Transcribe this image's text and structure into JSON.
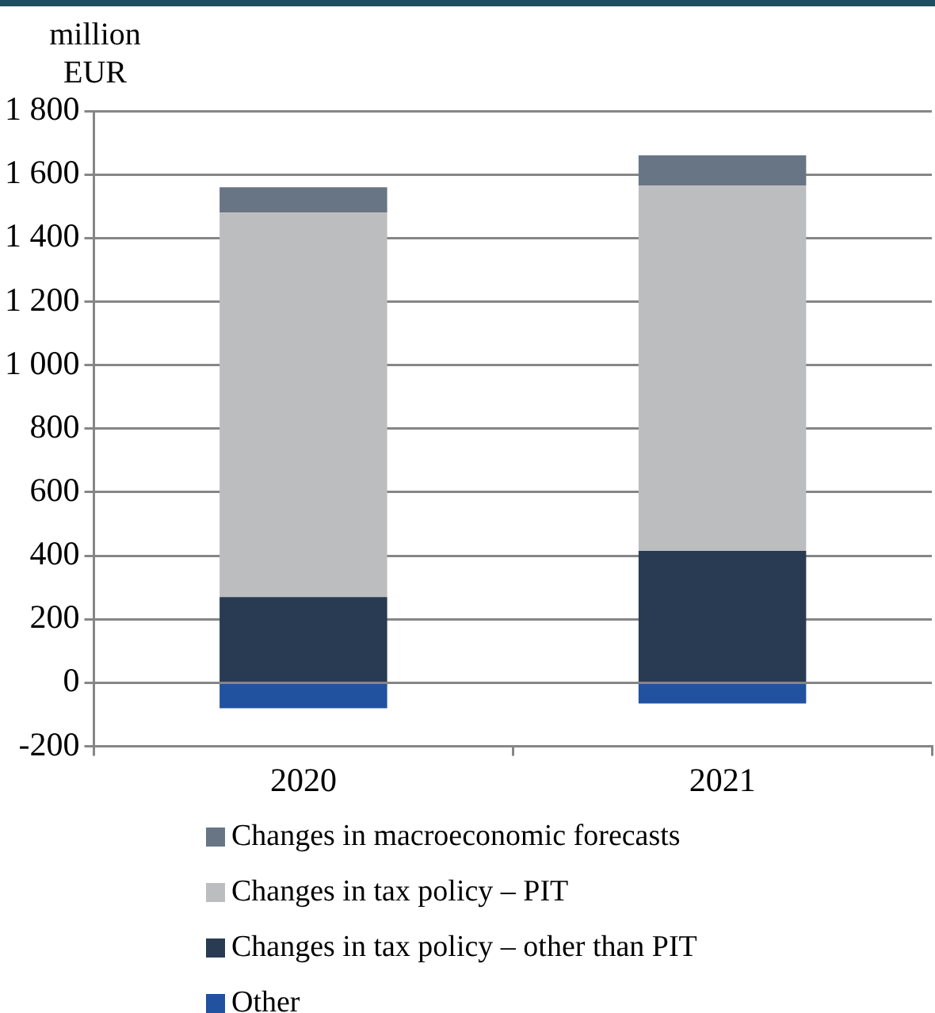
{
  "chart_data": {
    "type": "bar",
    "stacked": true,
    "ylabel": "million EUR",
    "categories": [
      "2020",
      "2021"
    ],
    "series": [
      {
        "name": "Other",
        "color": "#2052a0",
        "values": [
          -80,
          -65
        ]
      },
      {
        "name": "Changes in tax policy – other than PIT",
        "color": "#283b52",
        "values": [
          270,
          415
        ]
      },
      {
        "name": "Changes in tax policy – PIT",
        "color": "#bcbdbf",
        "values": [
          1210,
          1150
        ]
      },
      {
        "name": "Changes in macroeconomic forecasts",
        "color": "#687584",
        "values": [
          80,
          95
        ]
      }
    ],
    "ylim": [
      -200,
      1800
    ],
    "yticks": [
      -200,
      0,
      200,
      400,
      600,
      800,
      {
        "value": 1000,
        "label": "1 000"
      },
      {
        "value": 1200,
        "label": "1 200"
      },
      {
        "value": 1400,
        "label": "1 400"
      },
      {
        "value": 1600,
        "label": "1 600"
      },
      {
        "value": 1800,
        "label": "1 800"
      }
    ],
    "grid": "y",
    "legend": "bottom"
  }
}
